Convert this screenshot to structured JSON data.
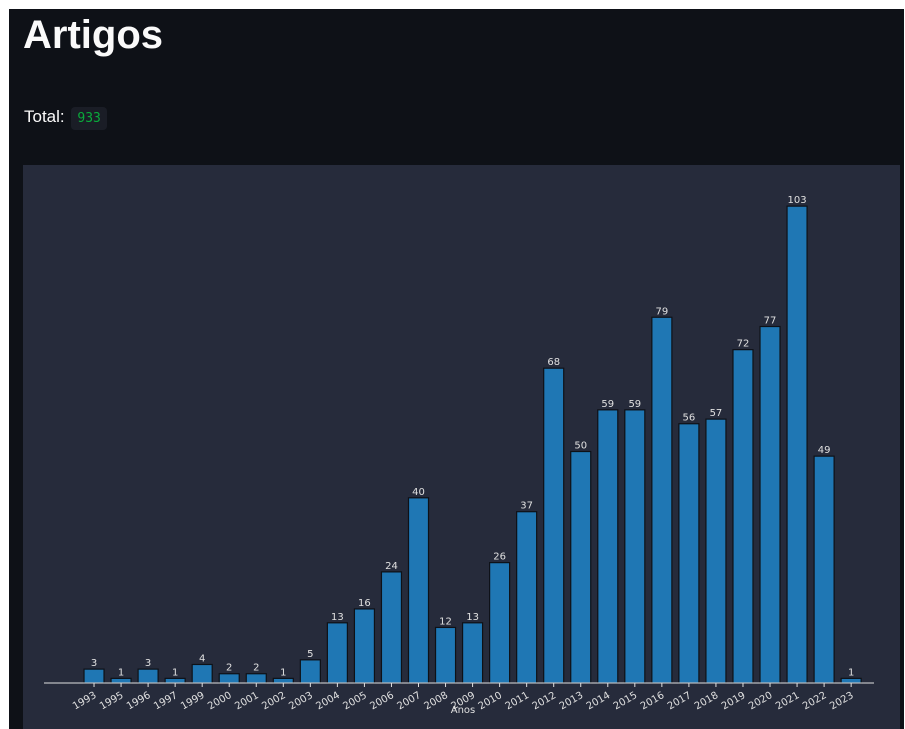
{
  "header": {
    "title": "Artigos"
  },
  "total": {
    "label": "Total:",
    "value": "933"
  },
  "chart_data": {
    "type": "bar",
    "xlabel": "Anos",
    "categories": [
      "1993",
      "1995",
      "1996",
      "1997",
      "1999",
      "2000",
      "2001",
      "2002",
      "2003",
      "2004",
      "2005",
      "2006",
      "2007",
      "2008",
      "2009",
      "2010",
      "2011",
      "2012",
      "2013",
      "2014",
      "2015",
      "2016",
      "2017",
      "2018",
      "2019",
      "2020",
      "2021",
      "2022",
      "2023"
    ],
    "values": [
      3,
      1,
      3,
      1,
      4,
      2,
      2,
      1,
      5,
      13,
      16,
      24,
      40,
      12,
      13,
      26,
      37,
      68,
      50,
      59,
      59,
      79,
      56,
      57,
      72,
      77,
      103,
      49,
      1
    ],
    "color": "#1f77b4",
    "ylim": [
      0,
      108
    ]
  }
}
